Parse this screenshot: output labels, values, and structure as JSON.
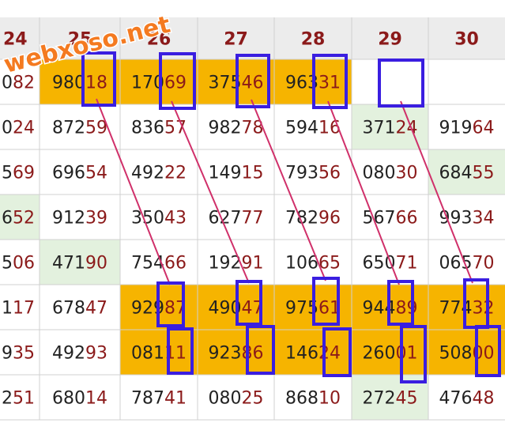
{
  "watermark": "webxoso.net",
  "table": {
    "header": [
      "24",
      "25",
      "26",
      "27",
      "28",
      "29",
      "30"
    ],
    "rows": [
      [
        {
          "head": "0",
          "tail": "82"
        },
        {
          "head": "980",
          "tail": "18"
        },
        {
          "head": "170",
          "tail": "69"
        },
        {
          "head": "375",
          "tail": "46"
        },
        {
          "head": "963",
          "tail": "31"
        },
        null,
        null
      ],
      [
        {
          "head": "0",
          "tail": "24"
        },
        {
          "head": "872",
          "tail": "59"
        },
        {
          "head": "836",
          "tail": "57"
        },
        {
          "head": "982",
          "tail": "78"
        },
        {
          "head": "594",
          "tail": "16"
        },
        {
          "head": "371",
          "tail": "24"
        },
        {
          "head": "919",
          "tail": "64"
        }
      ],
      [
        {
          "head": "5",
          "tail": "69"
        },
        {
          "head": "696",
          "tail": "54"
        },
        {
          "head": "492",
          "tail": "22"
        },
        {
          "head": "149",
          "tail": "15"
        },
        {
          "head": "793",
          "tail": "56"
        },
        {
          "head": "080",
          "tail": "30"
        },
        {
          "head": "684",
          "tail": "55"
        }
      ],
      [
        {
          "head": "6",
          "tail": "52"
        },
        {
          "head": "912",
          "tail": "39"
        },
        {
          "head": "350",
          "tail": "43"
        },
        {
          "head": "627",
          "tail": "77"
        },
        {
          "head": "782",
          "tail": "96"
        },
        {
          "head": "567",
          "tail": "66"
        },
        {
          "head": "993",
          "tail": "34"
        }
      ],
      [
        {
          "head": "5",
          "tail": "06"
        },
        {
          "head": "471",
          "tail": "90"
        },
        {
          "head": "754",
          "tail": "66"
        },
        {
          "head": "192",
          "tail": "91"
        },
        {
          "head": "106",
          "tail": "65"
        },
        {
          "head": "650",
          "tail": "71"
        },
        {
          "head": "065",
          "tail": "70"
        }
      ],
      [
        {
          "head": "1",
          "tail": "17"
        },
        {
          "head": "678",
          "tail": "47"
        },
        {
          "head": "929",
          "tail": "87"
        },
        {
          "head": "490",
          "tail": "47"
        },
        {
          "head": "975",
          "tail": "61"
        },
        {
          "head": "944",
          "tail": "89"
        },
        {
          "head": "774",
          "tail": "32"
        }
      ],
      [
        {
          "head": "9",
          "tail": "35"
        },
        {
          "head": "492",
          "tail": "93"
        },
        {
          "head": "081",
          "tail": "11"
        },
        {
          "head": "923",
          "tail": "86"
        },
        {
          "head": "146",
          "tail": "24"
        },
        {
          "head": "260",
          "tail": "01"
        },
        {
          "head": "508",
          "tail": "00"
        }
      ],
      [
        {
          "head": "2",
          "tail": "51"
        },
        {
          "head": "680",
          "tail": "14"
        },
        {
          "head": "787",
          "tail": "41"
        },
        {
          "head": "080",
          "tail": "25"
        },
        {
          "head": "868",
          "tail": "10"
        },
        {
          "head": "272",
          "tail": "45"
        },
        {
          "head": "476",
          "tail": "48"
        }
      ]
    ]
  }
}
